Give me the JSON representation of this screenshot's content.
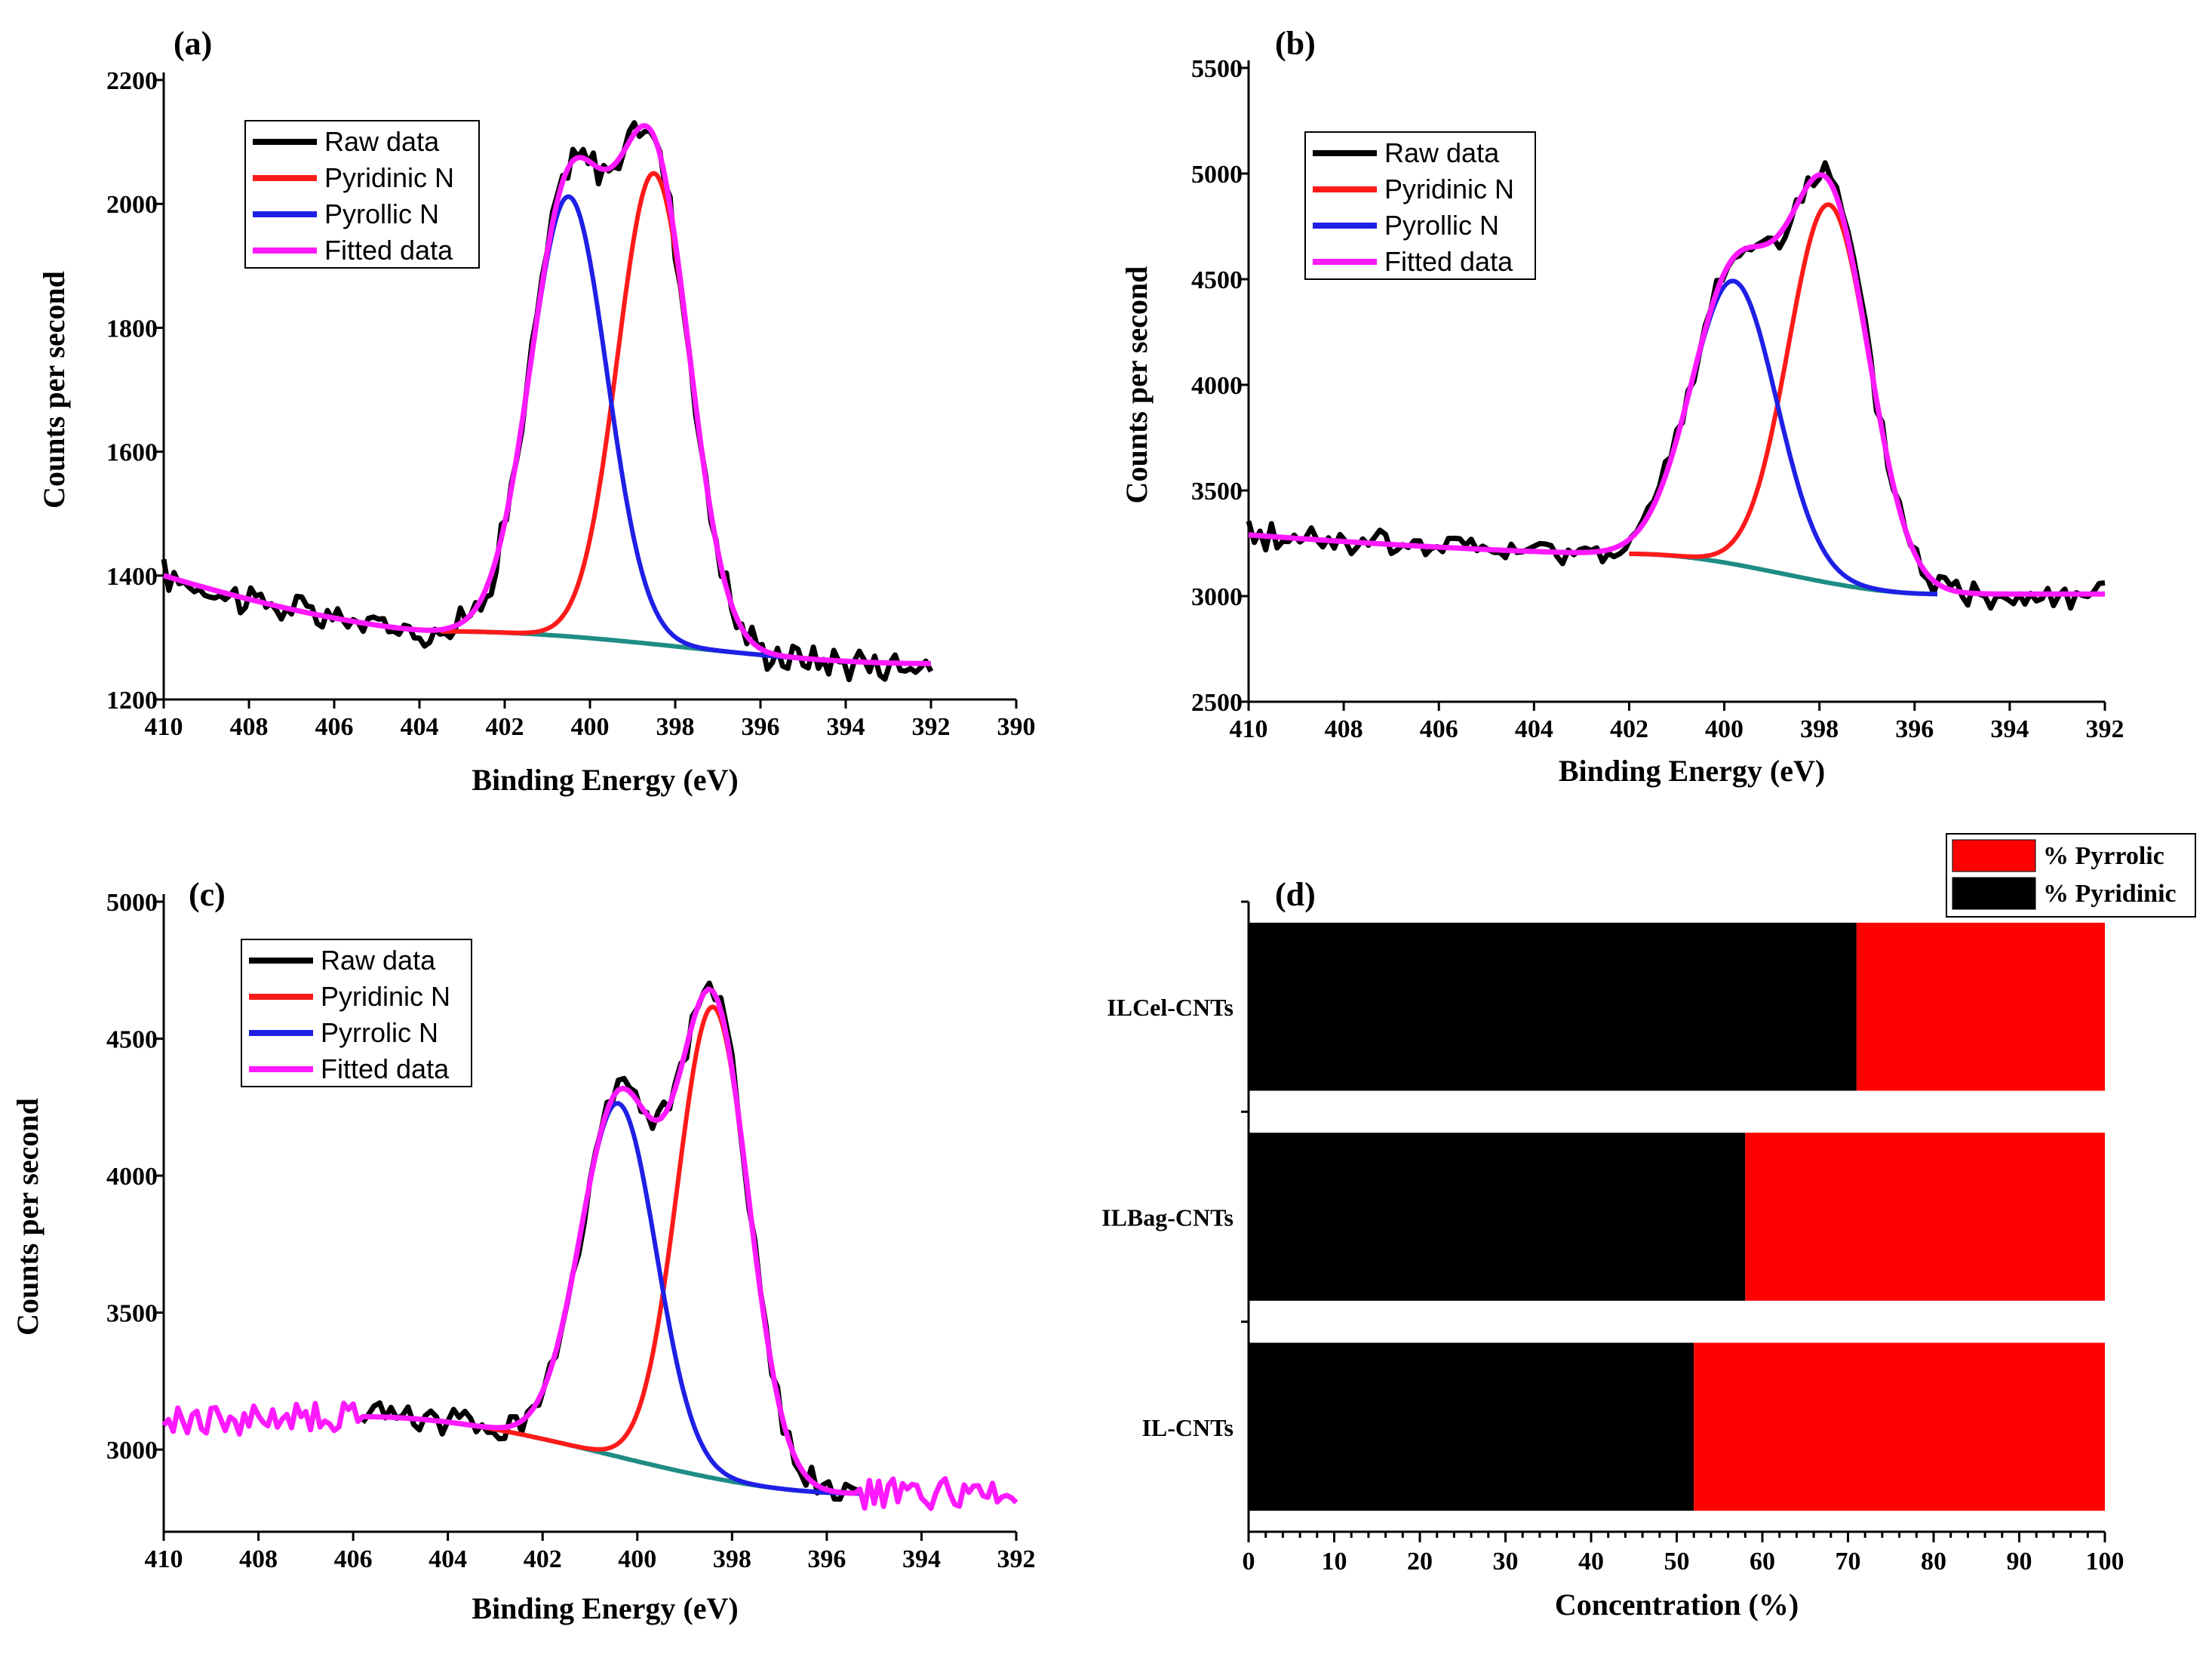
{
  "chart_data": [
    {
      "id": "a",
      "panel_label": "(a)",
      "type": "line",
      "xlabel": "Binding Energy (eV)",
      "ylabel": "Counts per second",
      "xlim": [
        410,
        390
      ],
      "ylim": [
        1200,
        2200
      ],
      "xticks": [
        "410",
        "408",
        "406",
        "404",
        "402",
        "400",
        "398",
        "396",
        "394",
        "392",
        "390"
      ],
      "yticks": [
        "1200",
        "1400",
        "1600",
        "1800",
        "2000",
        "2200"
      ],
      "legend": [
        "Raw data",
        "Pyridinic N",
        "Pyrollic N",
        "Fitted data"
      ],
      "colors": {
        "raw": "#000000",
        "pyridinic": "#ff1a1a",
        "pyrrolic": "#1f1fe6",
        "fitted": "#ff19ff",
        "baseline": "#1f8c86"
      },
      "baseline": {
        "from": 403.5,
        "to": 392.0,
        "start": 1310,
        "end": 1258
      },
      "pre_background": {
        "from": 410,
        "to": 403.5,
        "start": 1400,
        "end": 1310
      },
      "pyridinic": {
        "center": 398.5,
        "amplitude": 760,
        "sigma": 0.85
      },
      "pyrrolic": {
        "center": 400.5,
        "amplitude": 710,
        "sigma": 0.9
      },
      "raw_noise": 22,
      "x_range": [
        410,
        392
      ]
    },
    {
      "id": "b",
      "panel_label": "(b)",
      "type": "line",
      "xlabel": "Binding Energy (eV)",
      "ylabel": "Counts per second",
      "xlim": [
        410,
        392
      ],
      "ylim": [
        2500,
        5500
      ],
      "xticks": [
        "410",
        "408",
        "406",
        "404",
        "402",
        "400",
        "398",
        "396",
        "394",
        "392"
      ],
      "yticks": [
        "2500",
        "3000",
        "3500",
        "4000",
        "4500",
        "5000",
        "5500"
      ],
      "legend": [
        "Raw data",
        "Pyridinic N",
        "Pyrollic N",
        "Fitted data"
      ],
      "colors": {
        "raw": "#000000",
        "pyridinic": "#ff1a1a",
        "pyrrolic": "#1f1fe6",
        "fitted": "#ff19ff",
        "baseline": "#1f8c86"
      },
      "baseline": {
        "from": 402.0,
        "to": 395.5,
        "start": 3200,
        "end": 3010
      },
      "pre_background": {
        "from": 410,
        "to": 402.0,
        "start": 3290,
        "end": 3200
      },
      "post_level": 3010,
      "pyridinic": {
        "center": 397.8,
        "amplitude": 1790,
        "sigma": 0.85
      },
      "pyrrolic": {
        "center": 399.8,
        "amplitude": 1340,
        "sigma": 0.9
      },
      "raw_noise": 55,
      "x_range": [
        410,
        392
      ]
    },
    {
      "id": "c",
      "panel_label": "(c)",
      "type": "line",
      "xlabel": "Binding Energy (eV)",
      "ylabel": "Counts per second",
      "xlim": [
        410,
        392
      ],
      "ylim": [
        2700,
        5000
      ],
      "xticks": [
        "410",
        "408",
        "406",
        "404",
        "402",
        "400",
        "398",
        "396",
        "394",
        "392"
      ],
      "yticks": [
        "3000",
        "3500",
        "4000",
        "4500",
        "5000"
      ],
      "legend": [
        "Raw data",
        "Pyridinic N",
        "Pyrrolic N",
        "Fitted data"
      ],
      "colors": {
        "raw": "#000000",
        "pyridinic": "#ff1a1a",
        "pyrrolic": "#1f1fe6",
        "fitted": "#ff19ff",
        "baseline": "#1f8c86"
      },
      "baseline": {
        "from": 405.8,
        "to": 395.3,
        "start": 3120,
        "end": 2840
      },
      "pre_background": {
        "from": 410,
        "to": 405.8,
        "start": 3100,
        "end": 3120
      },
      "pyridinic": {
        "center": 398.4,
        "amplitude": 1720,
        "sigma": 0.75
      },
      "pyrrolic": {
        "center": 400.4,
        "amplitude": 1290,
        "sigma": 0.8
      },
      "raw_noise": 40,
      "x_range": [
        405.8,
        395.3
      ],
      "fitted_x_range": [
        410,
        392
      ]
    },
    {
      "id": "d",
      "panel_label": "(d)",
      "type": "bar",
      "orientation": "horizontal",
      "stacked": true,
      "xlabel": "Concentration (%)",
      "xlim": [
        0,
        100
      ],
      "xticks": [
        "0",
        "10",
        "20",
        "30",
        "40",
        "50",
        "60",
        "70",
        "80",
        "90",
        "100"
      ],
      "categories": [
        "ILCel-CNTs",
        "ILBag-CNTs",
        "IL-CNTs"
      ],
      "series": [
        {
          "name": "% Pyridinic",
          "color": "#000000",
          "values": [
            71,
            58,
            52
          ]
        },
        {
          "name": "% Pyrrolic",
          "color": "#ff0000",
          "values": [
            29,
            42,
            48
          ]
        }
      ],
      "legend": [
        "% Pyrrolic",
        "% Pyridinic"
      ],
      "legend_position": "top-right"
    }
  ]
}
